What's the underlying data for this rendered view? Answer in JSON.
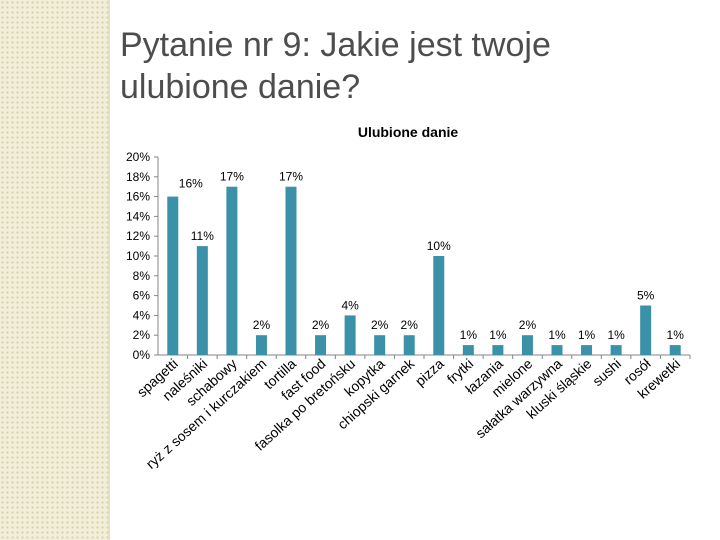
{
  "slide": {
    "title": "Pytanie nr 9: Jakie jest twoje ulubione danie?"
  },
  "chart_data": {
    "type": "bar",
    "title": "Ulubione danie",
    "xlabel": "",
    "ylabel": "",
    "ylim": [
      0,
      20
    ],
    "y_ticks": [
      "0%",
      "2%",
      "4%",
      "6%",
      "8%",
      "10%",
      "12%",
      "14%",
      "16%",
      "18%",
      "20%"
    ],
    "grid": false,
    "legend": "none",
    "color": "#3a91a8",
    "categories": [
      "spagetti",
      "naleśniki",
      "schabowy",
      "ryż z sosem i kurczakiem",
      "tortilla",
      "fast food",
      "fasolka po bretońsku",
      "kopytka",
      "chiopski garnek",
      "pizza",
      "frytki",
      "łazania",
      "mielone",
      "sałatka warzywna",
      "kluski śląskie",
      "sushi",
      "rosół",
      "krewetki"
    ],
    "values": [
      16,
      11,
      17,
      2,
      17,
      2,
      4,
      2,
      2,
      10,
      1,
      1,
      2,
      1,
      1,
      1,
      5,
      1
    ],
    "data_labels": [
      "16%",
      "11%",
      "17%",
      "2%",
      "17%",
      "2%",
      "4%",
      "2%",
      "2%",
      "10%",
      "1%",
      "1%",
      "2%",
      "1%",
      "1%",
      "1%",
      "5%",
      "1%"
    ]
  }
}
